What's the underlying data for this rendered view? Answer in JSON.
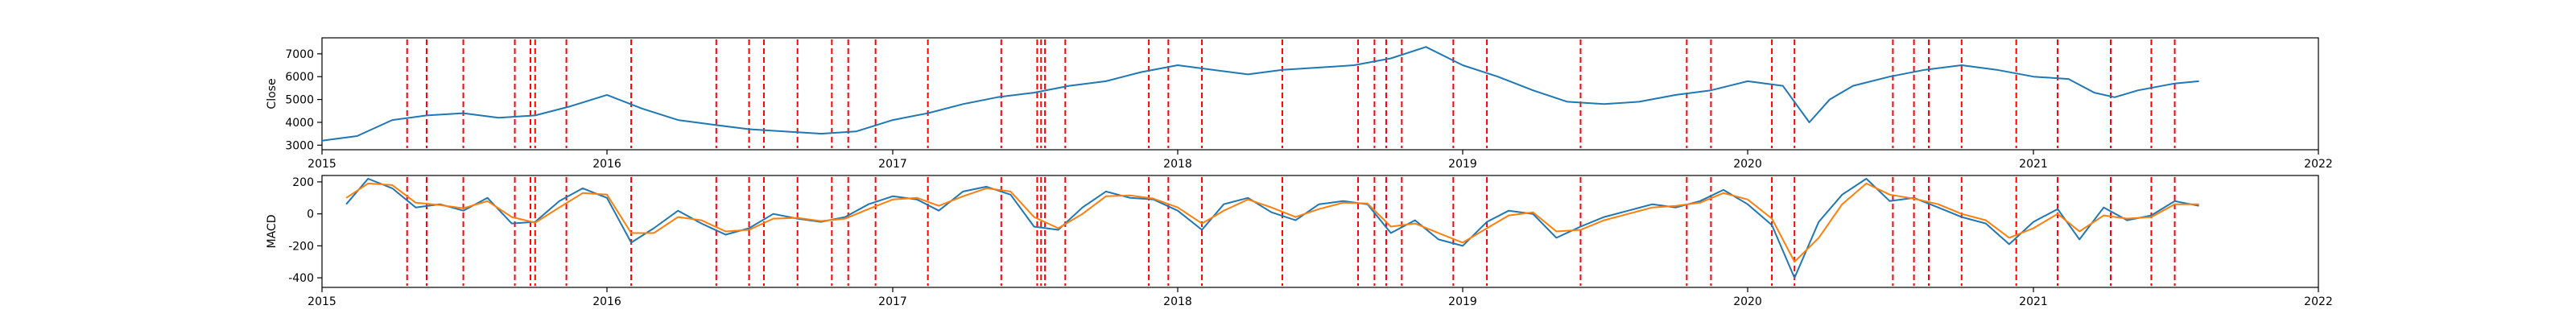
{
  "chart_data": [
    {
      "type": "line",
      "title": "",
      "xlabel": "",
      "ylabel": "Close",
      "xlim": [
        "2015-01-01",
        "2022-01-01"
      ],
      "ylim": [
        2800,
        7700
      ],
      "x_ticks": [
        "2015",
        "2016",
        "2017",
        "2018",
        "2019",
        "2020",
        "2021",
        "2022"
      ],
      "y_ticks": [
        3000,
        4000,
        5000,
        6000,
        7000
      ],
      "grid": false,
      "colors": {
        "close": "#1f77b4",
        "signal_line": "#ff0000"
      },
      "series": [
        {
          "name": "",
          "x": [
            "2015-01-01",
            "2015-02-15",
            "2015-04-01",
            "2015-05-15",
            "2015-07-01",
            "2015-08-15",
            "2015-10-01",
            "2015-11-15",
            "2016-01-01",
            "2016-02-15",
            "2016-04-01",
            "2016-05-15",
            "2016-07-01",
            "2016-08-15",
            "2016-10-01",
            "2016-11-15",
            "2017-01-01",
            "2017-02-15",
            "2017-04-01",
            "2017-05-15",
            "2017-07-01",
            "2017-08-15",
            "2017-10-01",
            "2017-11-15",
            "2018-01-01",
            "2018-02-15",
            "2018-04-01",
            "2018-05-15",
            "2018-07-01",
            "2018-08-15",
            "2018-10-01",
            "2018-11-15",
            "2019-01-01",
            "2019-02-15",
            "2019-04-01",
            "2019-05-15",
            "2019-07-01",
            "2019-08-15",
            "2019-10-01",
            "2019-11-15",
            "2020-01-01",
            "2020-02-15",
            "2020-03-20",
            "2020-04-15",
            "2020-05-15",
            "2020-07-01",
            "2020-08-15",
            "2020-10-01",
            "2020-11-15",
            "2021-01-01",
            "2021-02-15",
            "2021-03-20",
            "2021-04-15",
            "2021-05-15",
            "2021-07-01",
            "2021-08-01"
          ],
          "values": [
            3200,
            3400,
            4100,
            4300,
            4400,
            4200,
            4300,
            4700,
            5200,
            4600,
            4100,
            3900,
            3700,
            3600,
            3500,
            3600,
            4100,
            4400,
            4800,
            5100,
            5300,
            5600,
            5800,
            6200,
            6500,
            6300,
            6100,
            6300,
            6400,
            6500,
            6800,
            7300,
            6500,
            6000,
            5400,
            4900,
            4800,
            4900,
            5200,
            5400,
            5800,
            5600,
            4000,
            5000,
            5600,
            6000,
            6300,
            6500,
            6300,
            6000,
            5900,
            5300,
            5100,
            5400,
            5700,
            5800
          ]
        }
      ],
      "event_dates": [
        "2015-04-20",
        "2015-05-15",
        "2015-07-01",
        "2015-09-05",
        "2015-09-25",
        "2015-10-01",
        "2015-11-10",
        "2016-02-01",
        "2016-05-20",
        "2016-07-01",
        "2016-07-20",
        "2016-09-01",
        "2016-10-15",
        "2016-11-05",
        "2016-12-10",
        "2017-02-15",
        "2017-05-20",
        "2017-07-05",
        "2017-07-10",
        "2017-07-15",
        "2017-08-10",
        "2017-11-25",
        "2017-12-20",
        "2018-02-01",
        "2018-05-15",
        "2018-08-20",
        "2018-09-10",
        "2018-09-25",
        "2018-10-15",
        "2018-12-20",
        "2019-02-01",
        "2019-06-01",
        "2019-10-15",
        "2019-11-15",
        "2020-02-01",
        "2020-03-01",
        "2020-07-05",
        "2020-08-01",
        "2020-08-20",
        "2020-10-01",
        "2020-12-10",
        "2021-02-01",
        "2021-04-10",
        "2021-06-01",
        "2021-07-01"
      ]
    },
    {
      "type": "line",
      "title": "",
      "xlabel": "",
      "ylabel": "MACD",
      "xlim": [
        "2015-01-01",
        "2022-01-01"
      ],
      "ylim": [
        -460,
        240
      ],
      "x_ticks": [
        "2015",
        "2016",
        "2017",
        "2018",
        "2019",
        "2020",
        "2021",
        "2022"
      ],
      "y_ticks": [
        -400,
        -200,
        0,
        200
      ],
      "grid": false,
      "colors": {
        "macd": "#1f77b4",
        "signal": "#ff7f0e",
        "signal_line": "#ff0000"
      },
      "series": [
        {
          "name": "",
          "x": [
            "2015-02-01",
            "2015-03-01",
            "2015-04-01",
            "2015-05-01",
            "2015-06-01",
            "2015-07-01",
            "2015-08-01",
            "2015-09-01",
            "2015-10-01",
            "2015-11-01",
            "2015-12-01",
            "2016-01-01",
            "2016-02-01",
            "2016-03-01",
            "2016-04-01",
            "2016-05-01",
            "2016-06-01",
            "2016-07-01",
            "2016-08-01",
            "2016-09-01",
            "2016-10-01",
            "2016-11-01",
            "2016-12-01",
            "2017-01-01",
            "2017-02-01",
            "2017-03-01",
            "2017-04-01",
            "2017-05-01",
            "2017-06-01",
            "2017-07-01",
            "2017-08-01",
            "2017-09-01",
            "2017-10-01",
            "2017-11-01",
            "2017-12-01",
            "2018-01-01",
            "2018-02-01",
            "2018-03-01",
            "2018-04-01",
            "2018-05-01",
            "2018-06-01",
            "2018-07-01",
            "2018-08-01",
            "2018-09-01",
            "2018-10-01",
            "2018-11-01",
            "2018-12-01",
            "2019-01-01",
            "2019-02-01",
            "2019-03-01",
            "2019-04-01",
            "2019-05-01",
            "2019-06-01",
            "2019-07-01",
            "2019-08-01",
            "2019-09-01",
            "2019-10-01",
            "2019-11-01",
            "2019-12-01",
            "2020-01-01",
            "2020-02-01",
            "2020-03-01",
            "2020-04-01",
            "2020-05-01",
            "2020-06-01",
            "2020-07-01",
            "2020-08-01",
            "2020-09-01",
            "2020-10-01",
            "2020-11-01",
            "2020-12-01",
            "2021-01-01",
            "2021-02-01",
            "2021-03-01",
            "2021-04-01",
            "2021-05-01",
            "2021-06-01",
            "2021-07-01",
            "2021-08-01"
          ],
          "values": [
            60,
            220,
            160,
            40,
            60,
            20,
            100,
            -60,
            -50,
            80,
            160,
            100,
            -180,
            -90,
            20,
            -60,
            -130,
            -90,
            0,
            -30,
            -50,
            -20,
            60,
            110,
            90,
            20,
            140,
            170,
            120,
            -80,
            -100,
            40,
            140,
            100,
            90,
            20,
            -100,
            60,
            100,
            10,
            -40,
            60,
            80,
            60,
            -120,
            -40,
            -160,
            -200,
            -50,
            20,
            0,
            -150,
            -80,
            -20,
            20,
            60,
            40,
            80,
            150,
            60,
            -70,
            -400,
            -50,
            120,
            220,
            80,
            100,
            40,
            -20,
            -60,
            -190,
            -50,
            30,
            -160,
            40,
            -40,
            -10,
            80,
            50
          ]
        },
        {
          "name": "",
          "x": [
            "2015-02-01",
            "2015-03-01",
            "2015-04-01",
            "2015-05-01",
            "2015-06-01",
            "2015-07-01",
            "2015-08-01",
            "2015-09-01",
            "2015-10-01",
            "2015-11-01",
            "2015-12-01",
            "2016-01-01",
            "2016-02-01",
            "2016-03-01",
            "2016-04-01",
            "2016-05-01",
            "2016-06-01",
            "2016-07-01",
            "2016-08-01",
            "2016-09-01",
            "2016-10-01",
            "2016-11-01",
            "2016-12-01",
            "2017-01-01",
            "2017-02-01",
            "2017-03-01",
            "2017-04-01",
            "2017-05-01",
            "2017-06-01",
            "2017-07-01",
            "2017-08-01",
            "2017-09-01",
            "2017-10-01",
            "2017-11-01",
            "2017-12-01",
            "2018-01-01",
            "2018-02-01",
            "2018-03-01",
            "2018-04-01",
            "2018-05-01",
            "2018-06-01",
            "2018-07-01",
            "2018-08-01",
            "2018-09-01",
            "2018-10-01",
            "2018-11-01",
            "2018-12-01",
            "2019-01-01",
            "2019-02-01",
            "2019-03-01",
            "2019-04-01",
            "2019-05-01",
            "2019-06-01",
            "2019-07-01",
            "2019-08-01",
            "2019-09-01",
            "2019-10-01",
            "2019-11-01",
            "2019-12-01",
            "2020-01-01",
            "2020-02-01",
            "2020-03-01",
            "2020-04-01",
            "2020-05-01",
            "2020-06-01",
            "2020-07-01",
            "2020-08-01",
            "2020-09-01",
            "2020-10-01",
            "2020-11-01",
            "2020-12-01",
            "2021-01-01",
            "2021-02-01",
            "2021-03-01",
            "2021-04-01",
            "2021-05-01",
            "2021-06-01",
            "2021-07-01",
            "2021-08-01"
          ],
          "values": [
            100,
            190,
            180,
            70,
            55,
            35,
            80,
            -20,
            -55,
            40,
            130,
            120,
            -120,
            -120,
            -20,
            -40,
            -110,
            -100,
            -30,
            -25,
            -45,
            -30,
            30,
            90,
            100,
            50,
            110,
            160,
            140,
            -20,
            -90,
            0,
            110,
            115,
            95,
            40,
            -60,
            20,
            90,
            40,
            -20,
            30,
            70,
            65,
            -80,
            -60,
            -120,
            -180,
            -90,
            -10,
            10,
            -110,
            -100,
            -40,
            0,
            40,
            50,
            70,
            130,
            90,
            -30,
            -300,
            -150,
            60,
            190,
            120,
            95,
            60,
            0,
            -40,
            -150,
            -90,
            0,
            -110,
            -10,
            -30,
            -20,
            60,
            60
          ]
        }
      ],
      "event_dates": [
        "2015-04-20",
        "2015-05-15",
        "2015-07-01",
        "2015-09-05",
        "2015-09-25",
        "2015-10-01",
        "2015-11-10",
        "2016-02-01",
        "2016-05-20",
        "2016-07-01",
        "2016-07-20",
        "2016-09-01",
        "2016-10-15",
        "2016-11-05",
        "2016-12-10",
        "2017-02-15",
        "2017-05-20",
        "2017-07-05",
        "2017-07-10",
        "2017-07-15",
        "2017-08-10",
        "2017-11-25",
        "2017-12-20",
        "2018-02-01",
        "2018-05-15",
        "2018-08-20",
        "2018-09-10",
        "2018-09-25",
        "2018-10-15",
        "2018-12-20",
        "2019-02-01",
        "2019-06-01",
        "2019-10-15",
        "2019-11-15",
        "2020-02-01",
        "2020-03-01",
        "2020-07-05",
        "2020-08-01",
        "2020-08-20",
        "2020-10-01",
        "2020-12-10",
        "2021-02-01",
        "2021-04-10",
        "2021-06-01",
        "2021-07-01"
      ]
    }
  ]
}
